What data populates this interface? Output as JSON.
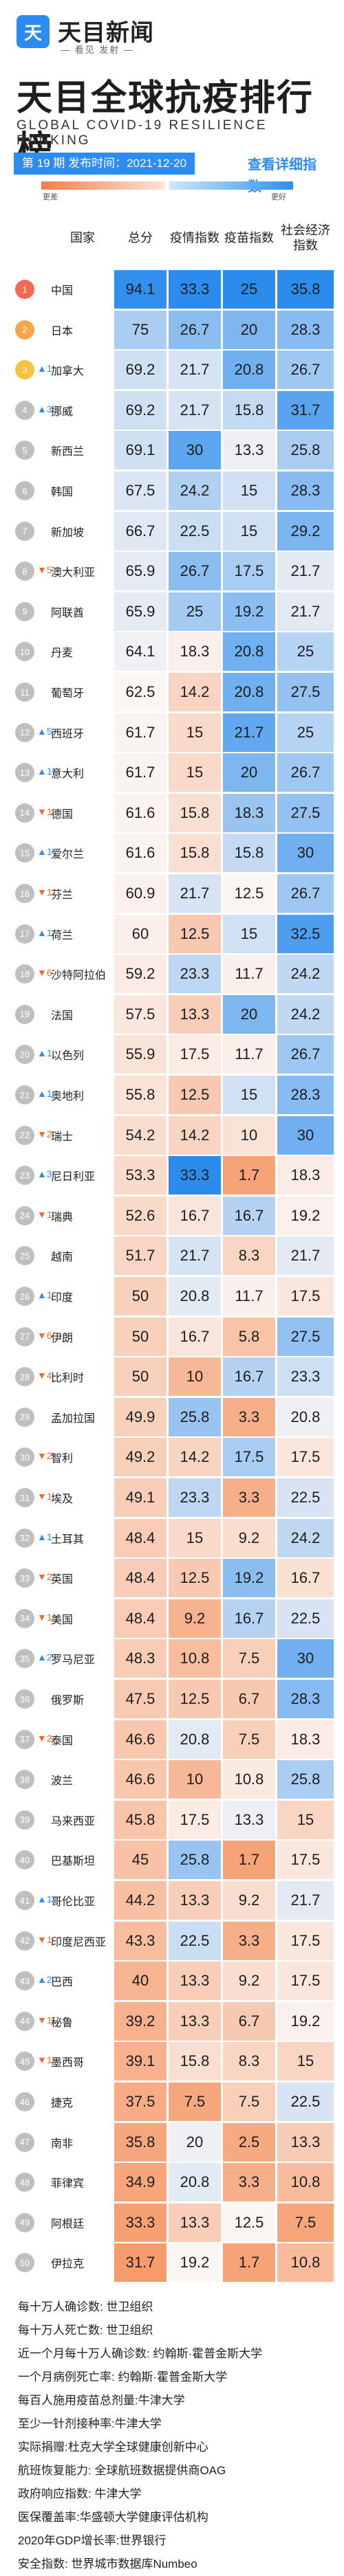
{
  "header": {
    "logo_char": "天",
    "brand": "天目新闻",
    "brand_sub": "— 看见 发射 —",
    "title": "天目全球抗疫排行榜",
    "subtitle": "GLOBAL COVID-19 RESILIENCE RANKING",
    "issue": "第 19 期 发布时间：2021-12-20",
    "detail_link": "查看详细指数>"
  },
  "legend": {
    "left": "更差",
    "right": "更好"
  },
  "columns": [
    "国家",
    "总分",
    "疫情指数",
    "疫苗指数",
    "社会经济指数"
  ],
  "rows": [
    {
      "rank": "1",
      "change": "",
      "dir": "",
      "country": "中国",
      "values": [
        "94.1",
        "33.3",
        "25",
        "35.8"
      ]
    },
    {
      "rank": "2",
      "change": "",
      "dir": "",
      "country": "日本",
      "values": [
        "75",
        "26.7",
        "20",
        "28.3"
      ]
    },
    {
      "rank": "3",
      "change": "▲1",
      "dir": "up",
      "country": "加拿大",
      "values": [
        "69.2",
        "21.7",
        "20.8",
        "26.7"
      ]
    },
    {
      "rank": "4",
      "change": "▲3",
      "dir": "up",
      "country": "挪威",
      "values": [
        "69.2",
        "21.7",
        "15.8",
        "31.7"
      ]
    },
    {
      "rank": "5",
      "change": "",
      "dir": "",
      "country": "新西兰",
      "values": [
        "69.1",
        "30",
        "13.3",
        "25.8"
      ]
    },
    {
      "rank": "6",
      "change": "",
      "dir": "",
      "country": "韩国",
      "values": [
        "67.5",
        "24.2",
        "15",
        "28.3"
      ]
    },
    {
      "rank": "7",
      "change": "",
      "dir": "",
      "country": "新加坡",
      "values": [
        "66.7",
        "22.5",
        "15",
        "29.2"
      ]
    },
    {
      "rank": "8",
      "change": "▼5",
      "dir": "down",
      "country": "澳大利亚",
      "values": [
        "65.9",
        "26.7",
        "17.5",
        "21.7"
      ]
    },
    {
      "rank": "9",
      "change": "",
      "dir": "",
      "country": "阿联酋",
      "values": [
        "65.9",
        "25",
        "19.2",
        "21.7"
      ]
    },
    {
      "rank": "10",
      "change": "",
      "dir": "",
      "country": "丹麦",
      "values": [
        "64.1",
        "18.3",
        "20.8",
        "25"
      ]
    },
    {
      "rank": "11",
      "change": "",
      "dir": "",
      "country": "葡萄牙",
      "values": [
        "62.5",
        "14.2",
        "20.8",
        "27.5"
      ]
    },
    {
      "rank": "12",
      "change": "▲5",
      "dir": "up",
      "country": "西班牙",
      "values": [
        "61.7",
        "15",
        "21.7",
        "25"
      ]
    },
    {
      "rank": "13",
      "change": "▲1",
      "dir": "up",
      "country": "意大利",
      "values": [
        "61.7",
        "15",
        "20",
        "26.7"
      ]
    },
    {
      "rank": "14",
      "change": "▼1",
      "dir": "down",
      "country": "德国",
      "values": [
        "61.6",
        "15.8",
        "18.3",
        "27.5"
      ]
    },
    {
      "rank": "15",
      "change": "▲1",
      "dir": "up",
      "country": "爱尔兰",
      "values": [
        "61.6",
        "15.8",
        "15.8",
        "30"
      ]
    },
    {
      "rank": "16",
      "change": "▼1",
      "dir": "down",
      "country": "芬兰",
      "values": [
        "60.9",
        "21.7",
        "12.5",
        "26.7"
      ]
    },
    {
      "rank": "17",
      "change": "▲1",
      "dir": "up",
      "country": "荷兰",
      "values": [
        "60",
        "12.5",
        "15",
        "32.5"
      ]
    },
    {
      "rank": "18",
      "change": "▼6",
      "dir": "down",
      "country": "沙特阿拉伯",
      "values": [
        "59.2",
        "23.3",
        "11.7",
        "24.2"
      ]
    },
    {
      "rank": "19",
      "change": "",
      "dir": "",
      "country": "法国",
      "values": [
        "57.5",
        "13.3",
        "20",
        "24.2"
      ]
    },
    {
      "rank": "20",
      "change": "▲1",
      "dir": "up",
      "country": "以色列",
      "values": [
        "55.9",
        "17.5",
        "11.7",
        "26.7"
      ]
    },
    {
      "rank": "21",
      "change": "▲1",
      "dir": "up",
      "country": "奥地利",
      "values": [
        "55.8",
        "12.5",
        "15",
        "28.3"
      ]
    },
    {
      "rank": "22",
      "change": "▼2",
      "dir": "down",
      "country": "瑞士",
      "values": [
        "54.2",
        "14.2",
        "10",
        "30"
      ]
    },
    {
      "rank": "23",
      "change": "▲3",
      "dir": "up",
      "country": "尼日利亚",
      "values": [
        "53.3",
        "33.3",
        "1.7",
        "18.3"
      ]
    },
    {
      "rank": "24",
      "change": "▼1",
      "dir": "down",
      "country": "瑞典",
      "values": [
        "52.6",
        "16.7",
        "16.7",
        "19.2"
      ]
    },
    {
      "rank": "25",
      "change": "",
      "dir": "",
      "country": "越南",
      "values": [
        "51.7",
        "21.7",
        "8.3",
        "21.7"
      ]
    },
    {
      "rank": "26",
      "change": "▲1",
      "dir": "up",
      "country": "印度",
      "values": [
        "50",
        "20.8",
        "11.7",
        "17.5"
      ]
    },
    {
      "rank": "27",
      "change": "▼6",
      "dir": "down",
      "country": "伊朗",
      "values": [
        "50",
        "16.7",
        "5.8",
        "27.5"
      ]
    },
    {
      "rank": "28",
      "change": "▼4",
      "dir": "down",
      "country": "比利时",
      "values": [
        "50",
        "10",
        "16.7",
        "23.3"
      ]
    },
    {
      "rank": "29",
      "change": "",
      "dir": "",
      "country": "孟加拉国",
      "values": [
        "49.9",
        "25.8",
        "3.3",
        "20.8"
      ]
    },
    {
      "rank": "30",
      "change": "▼2",
      "dir": "down",
      "country": "智利",
      "values": [
        "49.2",
        "14.2",
        "17.5",
        "17.5"
      ]
    },
    {
      "rank": "31",
      "change": "▼1",
      "dir": "down",
      "country": "埃及",
      "values": [
        "49.1",
        "23.3",
        "3.3",
        "22.5"
      ]
    },
    {
      "rank": "32",
      "change": "▲1",
      "dir": "up",
      "country": "土耳其",
      "values": [
        "48.4",
        "15",
        "9.2",
        "24.2"
      ]
    },
    {
      "rank": "33",
      "change": "▼2",
      "dir": "down",
      "country": "英国",
      "values": [
        "48.4",
        "12.5",
        "19.2",
        "16.7"
      ]
    },
    {
      "rank": "34",
      "change": "▼1",
      "dir": "down",
      "country": "美国",
      "values": [
        "48.4",
        "9.2",
        "16.7",
        "22.5"
      ]
    },
    {
      "rank": "35",
      "change": "▲2",
      "dir": "up",
      "country": "罗马尼亚",
      "values": [
        "48.3",
        "10.8",
        "7.5",
        "30"
      ]
    },
    {
      "rank": "36",
      "change": "",
      "dir": "",
      "country": "俄罗斯",
      "values": [
        "47.5",
        "12.5",
        "6.7",
        "28.3"
      ]
    },
    {
      "rank": "37",
      "change": "▼2",
      "dir": "down",
      "country": "泰国",
      "values": [
        "46.6",
        "20.8",
        "7.5",
        "18.3"
      ]
    },
    {
      "rank": "38",
      "change": "",
      "dir": "",
      "country": "波兰",
      "values": [
        "46.6",
        "10",
        "10.8",
        "25.8"
      ]
    },
    {
      "rank": "39",
      "change": "",
      "dir": "",
      "country": "马来西亚",
      "values": [
        "45.8",
        "17.5",
        "13.3",
        "15"
      ]
    },
    {
      "rank": "40",
      "change": "",
      "dir": "",
      "country": "巴基斯坦",
      "values": [
        "45",
        "25.8",
        "1.7",
        "17.5"
      ]
    },
    {
      "rank": "41",
      "change": "▲1",
      "dir": "up",
      "country": "哥伦比亚",
      "values": [
        "44.2",
        "13.3",
        "9.2",
        "21.7"
      ]
    },
    {
      "rank": "42",
      "change": "▼1",
      "dir": "down",
      "country": "印度尼西亚",
      "values": [
        "43.3",
        "22.5",
        "3.3",
        "17.5"
      ]
    },
    {
      "rank": "43",
      "change": "▲2",
      "dir": "up",
      "country": "巴西",
      "values": [
        "40",
        "13.3",
        "9.2",
        "17.5"
      ]
    },
    {
      "rank": "44",
      "change": "▼1",
      "dir": "down",
      "country": "秘鲁",
      "values": [
        "39.2",
        "13.3",
        "6.7",
        "19.2"
      ]
    },
    {
      "rank": "45",
      "change": "▼1",
      "dir": "down",
      "country": "墨西哥",
      "values": [
        "39.1",
        "15.8",
        "8.3",
        "15"
      ]
    },
    {
      "rank": "46",
      "change": "",
      "dir": "",
      "country": "捷克",
      "values": [
        "37.5",
        "7.5",
        "7.5",
        "22.5"
      ]
    },
    {
      "rank": "47",
      "change": "",
      "dir": "",
      "country": "南非",
      "values": [
        "35.8",
        "20",
        "2.5",
        "13.3"
      ]
    },
    {
      "rank": "48",
      "change": "",
      "dir": "",
      "country": "菲律宾",
      "values": [
        "34.9",
        "20.8",
        "3.3",
        "10.8"
      ]
    },
    {
      "rank": "49",
      "change": "",
      "dir": "",
      "country": "阿根廷",
      "values": [
        "33.3",
        "13.3",
        "12.5",
        "7.5"
      ]
    },
    {
      "rank": "50",
      "change": "",
      "dir": "",
      "country": "伊拉克",
      "values": [
        "31.7",
        "19.2",
        "1.7",
        "10.8"
      ]
    }
  ],
  "notes": [
    "每十万人确诊数: 世卫组织",
    "每十万人死亡数: 世卫组织",
    "近一个月每十万人确诊数: 约翰斯·霍普金斯大学",
    "一个月病例死亡率: 约翰斯·霍普金斯大学",
    "每百人施用疫苗总剂量:牛津大学",
    "至少一针剂接种率:牛津大学",
    "实际捐赠:杜克大学全球健康创新中心",
    "航班恢复能力: 全球航班数据提供商OAG",
    "政府响应指数: 牛津大学",
    "医保覆盖率:华盛顿大学健康评估机构",
    "2020年GDP增长率:世界银行",
    "安全指数: 世界城市数据库Numbeo"
  ]
}
